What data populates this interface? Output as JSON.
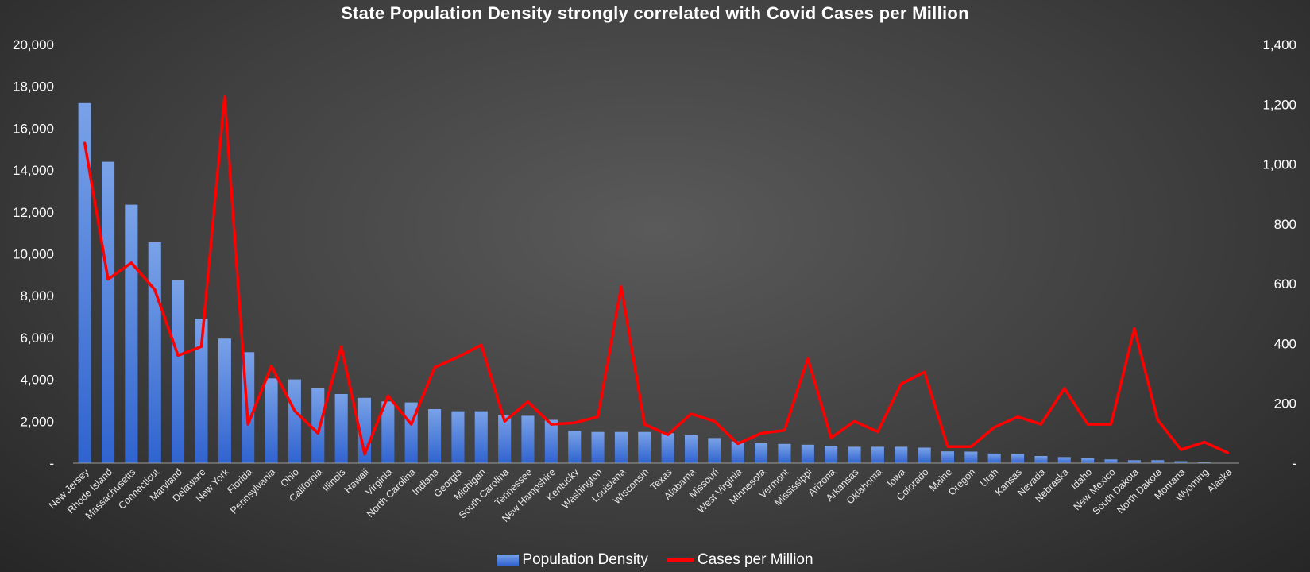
{
  "chart_data": {
    "type": "bar+line",
    "title": "State Population Density strongly correlated with Covid Cases per Million",
    "categories": [
      "New Jersey",
      "Rhode Island",
      "Massachusetts",
      "Connecticut",
      "Maryland",
      "Delaware",
      "New York",
      "Florida",
      "Pennsylvania",
      "Ohio",
      "California",
      "Illinois",
      "Hawaii",
      "Virginia",
      "North Carolina",
      "Indiana",
      "Georgia",
      "Michigan",
      "South Carolina",
      "Tennessee",
      "New Hampshire",
      "Kentucky",
      "Washington",
      "Louisiana",
      "Wisconsin",
      "Texas",
      "Alabama",
      "Missouri",
      "West Virginia",
      "Minnesota",
      "Vermont",
      "Mississippi",
      "Arizona",
      "Arkansas",
      "Oklahoma",
      "Iowa",
      "Colorado",
      "Maine",
      "Oregon",
      "Utah",
      "Kansas",
      "Nevada",
      "Nebraska",
      "Idaho",
      "New Mexico",
      "South Dakota",
      "North Dakota",
      "Montana",
      "Wyoming",
      "Alaska"
    ],
    "series": [
      {
        "name": "Population Density",
        "type": "bar",
        "axis": "left",
        "color": "#3f74d9",
        "values": [
          17200,
          14400,
          12350,
          10550,
          8750,
          6900,
          5950,
          5300,
          4050,
          4000,
          3580,
          3300,
          3120,
          2950,
          2900,
          2580,
          2480,
          2480,
          2300,
          2260,
          2070,
          1550,
          1490,
          1490,
          1490,
          1430,
          1330,
          1200,
          1040,
          950,
          920,
          880,
          830,
          780,
          780,
          780,
          740,
          560,
          550,
          460,
          440,
          340,
          290,
          230,
          180,
          140,
          140,
          90,
          40,
          20
        ]
      },
      {
        "name": "Cases per Million",
        "type": "line",
        "axis": "right",
        "color": "#ff0000",
        "values": [
          1070,
          615,
          670,
          580,
          360,
          390,
          1225,
          130,
          325,
          175,
          100,
          390,
          30,
          225,
          130,
          320,
          355,
          395,
          140,
          205,
          130,
          135,
          155,
          590,
          130,
          95,
          165,
          140,
          65,
          100,
          110,
          350,
          85,
          140,
          105,
          265,
          305,
          55,
          55,
          120,
          155,
          130,
          250,
          130,
          130,
          450,
          145,
          45,
          70,
          35
        ]
      }
    ],
    "y_left": {
      "min": 0,
      "max": 20000,
      "ticks": [
        "-",
        "2,000",
        "4,000",
        "6,000",
        "8,000",
        "10,000",
        "12,000",
        "14,000",
        "16,000",
        "18,000",
        "20,000"
      ]
    },
    "y_right": {
      "min": 0,
      "max": 1400,
      "ticks": [
        "-",
        "200",
        "400",
        "600",
        "800",
        "1,000",
        "1,200",
        "1,400"
      ]
    },
    "legend": {
      "position": "bottom",
      "entries": [
        "Population Density",
        "Cases per Million"
      ]
    },
    "grid": false,
    "background": "#3f3f3f",
    "bar_color_top": "#7aa2e8",
    "bar_color_bottom": "#2f63cf",
    "line_color": "#ff0000"
  }
}
